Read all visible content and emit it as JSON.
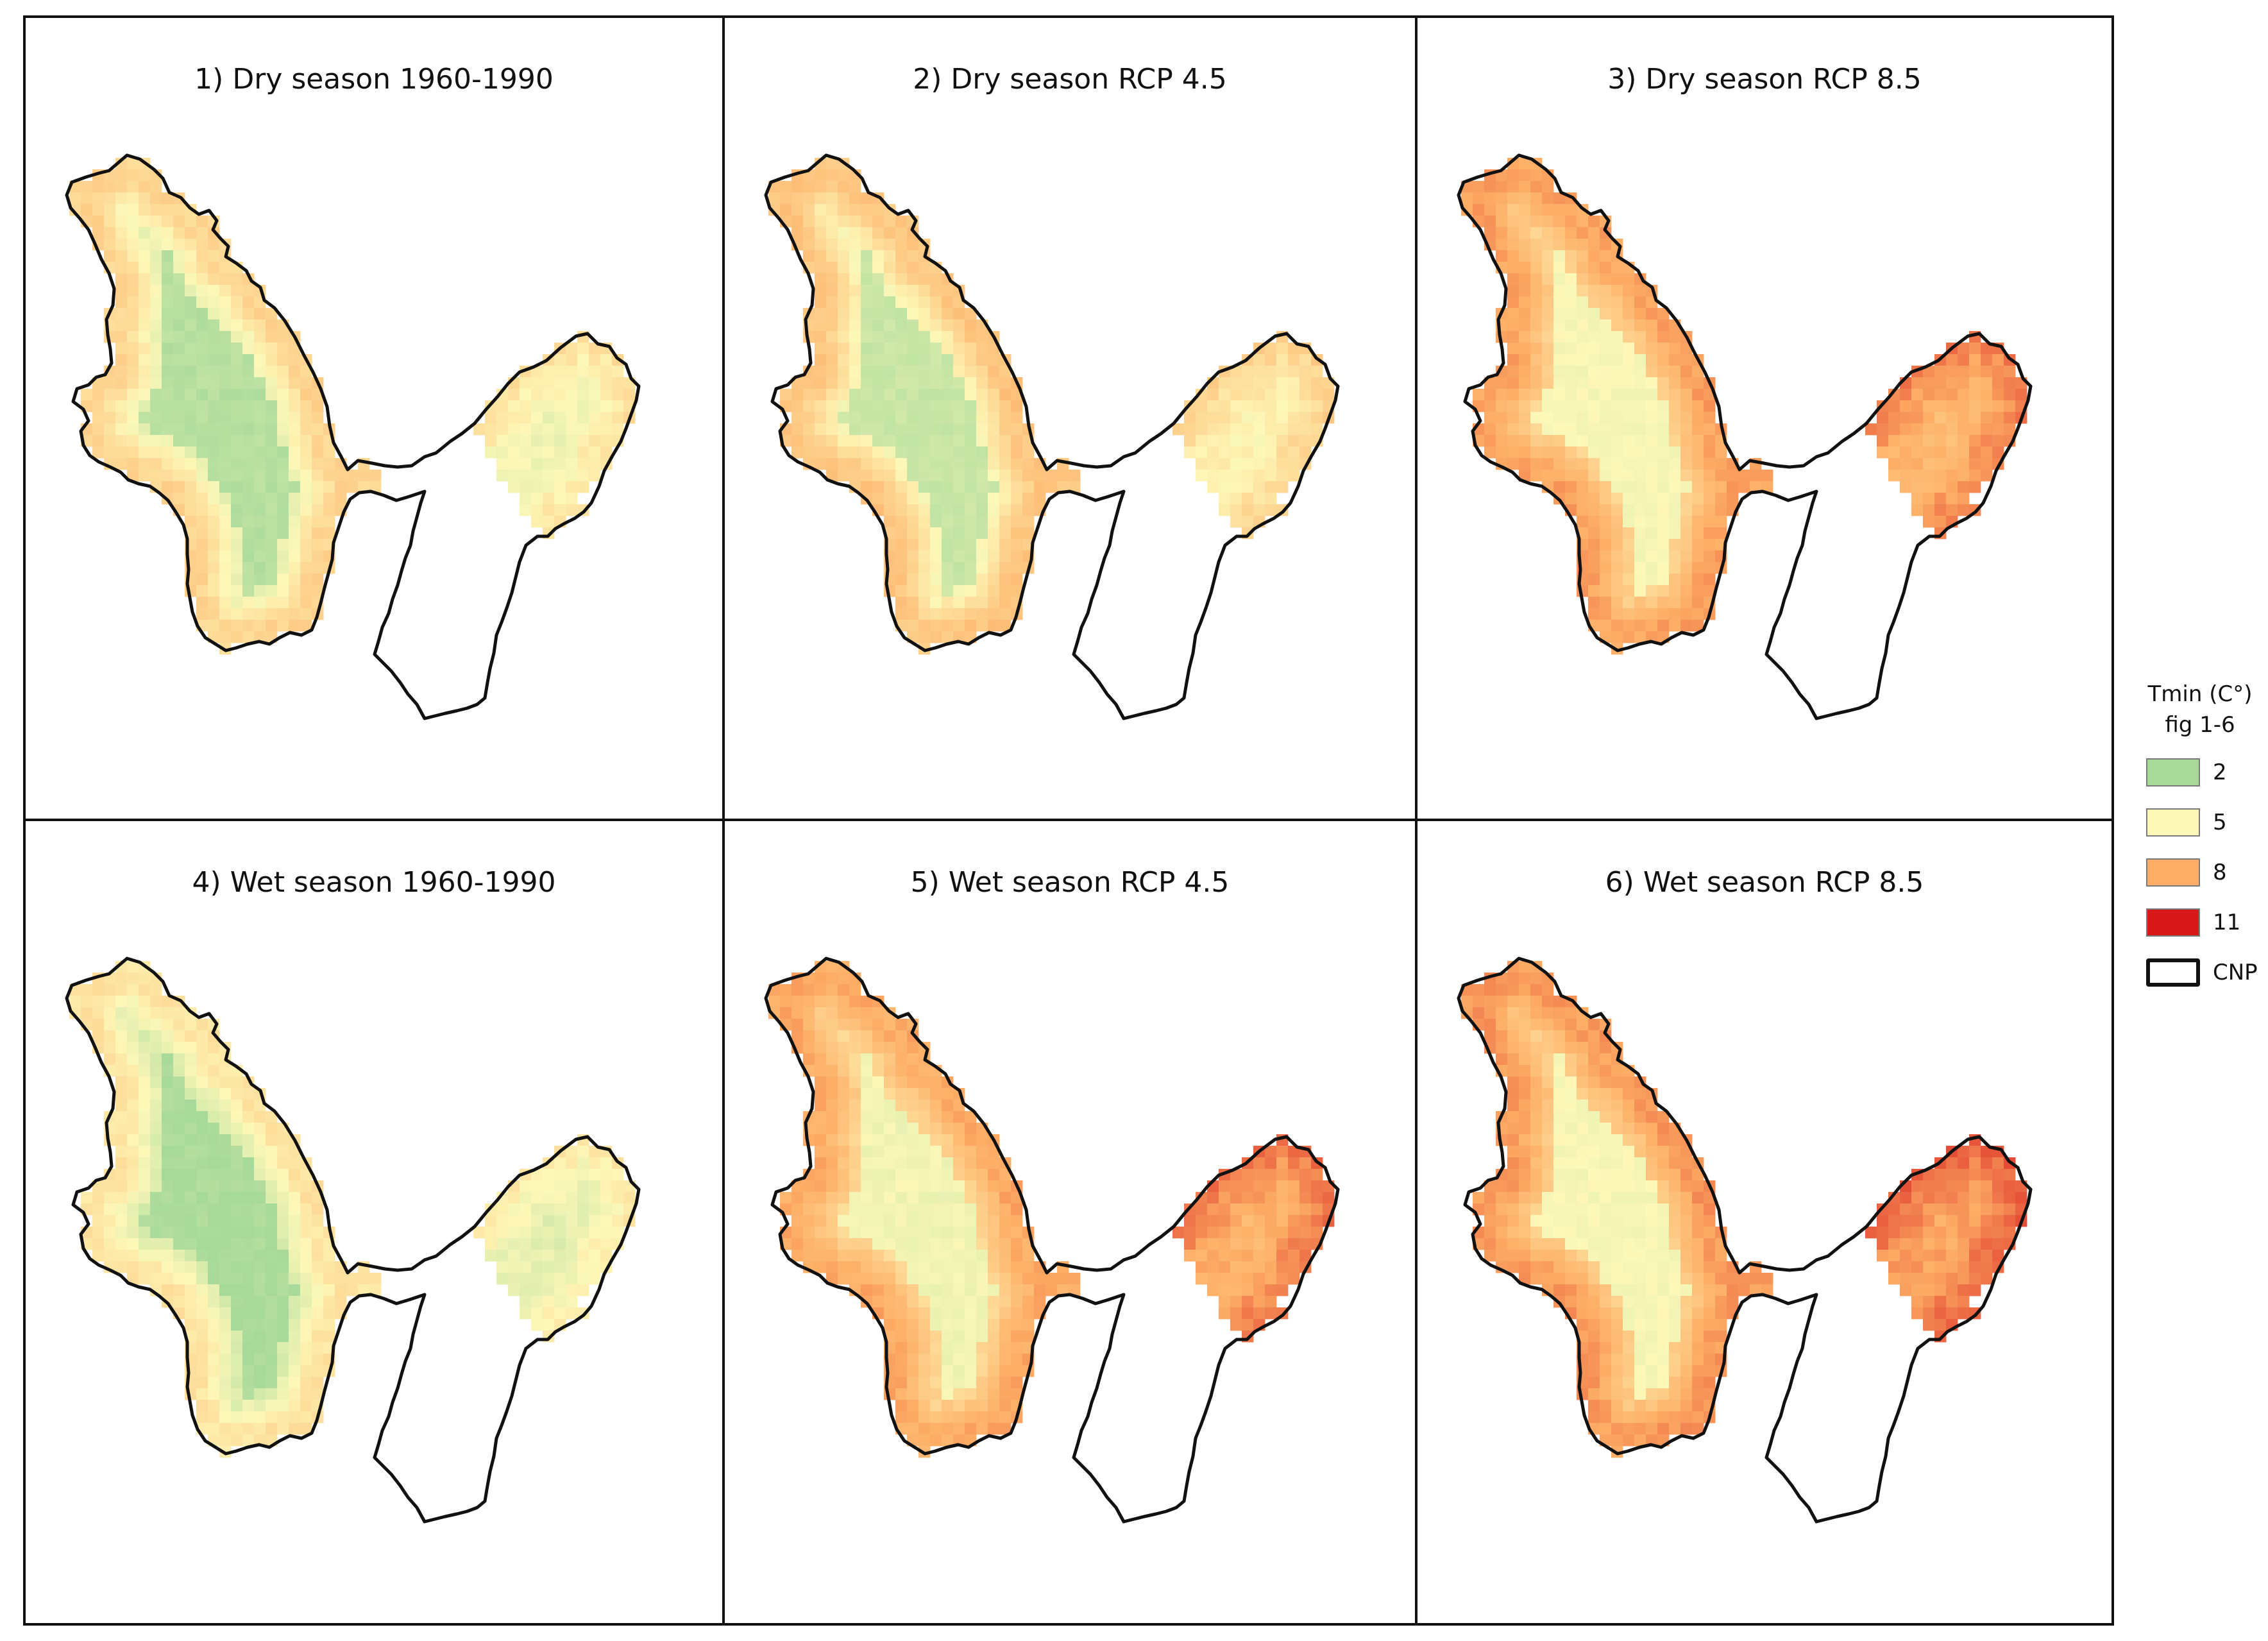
{
  "panels": [
    {
      "title": "1) Dry season 1960-1990",
      "scenario": "dry-baseline"
    },
    {
      "title": "2) Dry season RCP 4.5",
      "scenario": "dry-rcp45"
    },
    {
      "title": "3) Dry season RCP 8.5",
      "scenario": "dry-rcp85"
    },
    {
      "title": "4) Wet season 1960-1990",
      "scenario": "wet-baseline"
    },
    {
      "title": "5) Wet season RCP 4.5",
      "scenario": "wet-rcp45"
    },
    {
      "title": "6) Wet season RCP 8.5",
      "scenario": "wet-rcp85"
    }
  ],
  "legend": {
    "title_line1": "Tmin (C°)",
    "title_line2": "fig 1-6",
    "items": [
      {
        "label": "2",
        "color": "#a6d99a"
      },
      {
        "label": "5",
        "color": "#fdf8b8"
      },
      {
        "label": "8",
        "color": "#fdae66"
      },
      {
        "label": "11",
        "color": "#d7191c"
      },
      {
        "label": "CNP",
        "color": "#ffffff",
        "outline": true
      }
    ]
  },
  "map_levels": {
    "dry-baseline": {
      "core": 2.6,
      "body": 4.2,
      "edge": 6.4,
      "east": 6.0
    },
    "dry-rcp45": {
      "core": 3.2,
      "body": 4.8,
      "edge": 7.0,
      "east": 6.6
    },
    "dry-rcp85": {
      "core": 4.8,
      "body": 6.4,
      "edge": 8.2,
      "east": 9.0
    },
    "wet-baseline": {
      "core": 2.2,
      "body": 3.6,
      "edge": 5.8,
      "east": 5.6
    },
    "wet-rcp45": {
      "core": 4.6,
      "body": 6.2,
      "edge": 8.0,
      "east": 9.2
    },
    "wet-rcp85": {
      "core": 4.8,
      "body": 6.6,
      "edge": 8.4,
      "east": 9.6
    }
  }
}
